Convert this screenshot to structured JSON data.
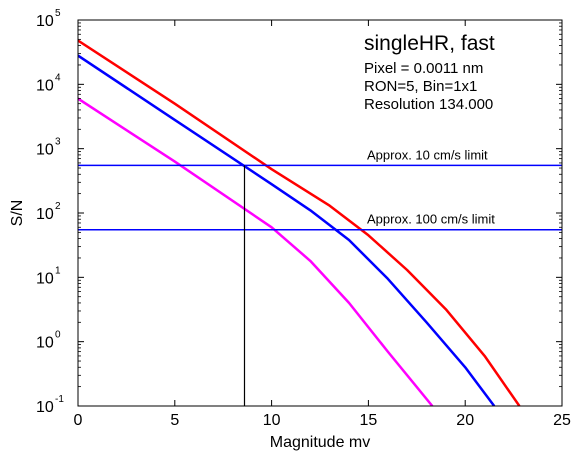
{
  "chart_data": {
    "type": "line",
    "xlabel": "Magnitude mv",
    "ylabel": "S/N",
    "xlim": [
      0,
      25
    ],
    "ylim": [
      0.1,
      100000
    ],
    "y_scale": "log",
    "grid": false,
    "x_ticks": [
      0,
      5,
      10,
      15,
      20,
      25
    ],
    "y_ticks": [
      {
        "value": 0.1,
        "base": "10",
        "exp": "-1"
      },
      {
        "value": 1,
        "base": "10",
        "exp": "0"
      },
      {
        "value": 10,
        "base": "10",
        "exp": "1"
      },
      {
        "value": 100,
        "base": "10",
        "exp": "2"
      },
      {
        "value": 1000,
        "base": "10",
        "exp": "3"
      },
      {
        "value": 10000,
        "base": "10",
        "exp": "4"
      },
      {
        "value": 100000,
        "base": "10",
        "exp": "5"
      }
    ],
    "series": [
      {
        "color": "#ff0000",
        "x": [
          0,
          5,
          10,
          13,
          15,
          17,
          19,
          21,
          22.8
        ],
        "y": [
          48000,
          5000,
          480,
          130,
          45,
          13,
          3.2,
          0.6,
          0.1
        ]
      },
      {
        "color": "#0000ff",
        "x": [
          0,
          5,
          10,
          12,
          14,
          16,
          18,
          20,
          21.5
        ],
        "y": [
          28000,
          2800,
          280,
          110,
          38,
          9.5,
          2,
          0.4,
          0.1
        ]
      },
      {
        "color": "#ff00ff",
        "x": [
          0,
          5,
          10,
          12,
          14,
          16,
          18.3
        ],
        "y": [
          6000,
          630,
          60,
          18,
          4,
          0.7,
          0.1
        ]
      }
    ],
    "horizontal_lines": [
      {
        "y": 550,
        "color": "#0000ff",
        "label": "Approx. 10 cm/s limit"
      },
      {
        "y": 55,
        "color": "#0000ff",
        "label": "Approx. 100 cm/s limit"
      }
    ],
    "vertical_marker": {
      "x_from": 8.6,
      "x_to": 8.6,
      "y_from": 0.1,
      "y_to": 550,
      "color": "#000000"
    },
    "annotation": {
      "title": "singleHR, fast",
      "lines": [
        "Pixel = 0.0011 nm",
        "RON=5, Bin=1x1",
        "Resolution 134.000"
      ]
    }
  }
}
